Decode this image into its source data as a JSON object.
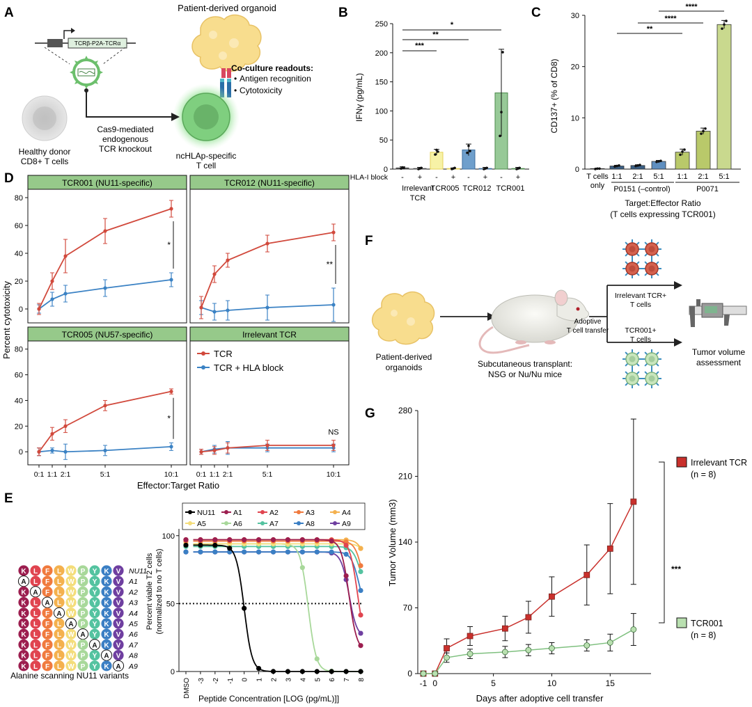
{
  "panel_labels": {
    "a": "A",
    "b": "B",
    "c": "C",
    "d": "D",
    "e": "E",
    "f": "F",
    "g": "G"
  },
  "panelA": {
    "title": "Patient-derived organoid",
    "vector_label": "TCRβ-P2A-TCRα",
    "readouts_title": "Co-culture readouts:",
    "readout1": "Antigen recognition",
    "readout2": "Cytotoxicity",
    "knockout_line1": "Cas9-mediated",
    "knockout_line2": "endogenous",
    "knockout_line3": "TCR knockout",
    "donor_line1": "Healthy donor",
    "donor_line2": "CD8+ T cells",
    "tcell_line1": "ncHLAp-specific",
    "tcell_line2": "T cell",
    "colors": {
      "organoid": "#f7dc86",
      "tcell_glow": "#6fd36f",
      "tcell": "#7fb47f",
      "donor": "#d7d7d7",
      "virus": "#8fcf8f"
    }
  },
  "panelF": {
    "organoids_line1": "Patient-derived",
    "organoids_line2": "organoids",
    "transplant_line1": "Subcutaneous transplant:",
    "transplant_line2": "NSG or Nu/Nu mice",
    "transfer_line1": "Adoptive",
    "transfer_line2": "T cell transfer",
    "irrelevant_line1": "Irrelevant TCR+",
    "irrelevant_line2": "T cells",
    "tcr001_line1": "TCR001+",
    "tcr001_line2": "T cells",
    "assess_line1": "Tumor volume",
    "assess_line2": "assessment",
    "icon_names": [
      "organoid-icon",
      "mouse-icon",
      "caliper-icon"
    ]
  },
  "chart_data": [
    {
      "id": "B",
      "type": "bar",
      "ylabel": "IFNγ (pg/mL)",
      "ylim": [
        0,
        250
      ],
      "yticks": [
        "0",
        "50",
        "100",
        "150",
        "200",
        "250"
      ],
      "hla_label": "HLA-I block",
      "hla_signs": [
        "-",
        "+",
        "-",
        "+",
        "-",
        "+",
        "-",
        "+"
      ],
      "group_labels": [
        "Irrelevant",
        "TCR005",
        "TCR012",
        "TCR001"
      ],
      "group_label_extra": "TCR",
      "bars": [
        {
          "value": 2,
          "err": 2,
          "color": "#4d4d4d",
          "fill": "#4d4d4d"
        },
        {
          "value": 1,
          "err": 2,
          "color": "#4d4d4d",
          "fill": "#4d4d4d"
        },
        {
          "value": 29,
          "err": 5,
          "color": "#e6d25a",
          "fill": "#f7f2a6"
        },
        {
          "value": 1,
          "err": 1,
          "color": "#e6d25a",
          "fill": "#f7f2a6"
        },
        {
          "value": 33,
          "err": 10,
          "color": "#3c6e9e",
          "fill": "#6f9fcc"
        },
        {
          "value": 1,
          "err": 2,
          "color": "#3c6e9e",
          "fill": "#6f9fcc"
        },
        {
          "value": 131,
          "err": 75,
          "color": "#4c8a4c",
          "fill": "#97c997"
        },
        {
          "value": 1,
          "err": 2,
          "color": "#4c8a4c",
          "fill": "#97c997"
        }
      ],
      "dots": [
        [
          1,
          3,
          2
        ],
        [
          0,
          1,
          2
        ],
        [
          25,
          33,
          30
        ],
        [
          0,
          1,
          2
        ],
        [
          28,
          40,
          31
        ],
        [
          0,
          1,
          2
        ],
        [
          57,
          98,
          201
        ],
        [
          0,
          1,
          2
        ]
      ],
      "significance": [
        {
          "from": 0,
          "to": 2,
          "label": "***"
        },
        {
          "from": 0,
          "to": 4,
          "label": "**"
        },
        {
          "from": 0,
          "to": 6,
          "label": "*"
        }
      ]
    },
    {
      "id": "C",
      "type": "bar",
      "ylabel": "CD137+ (% of CD8)",
      "ylim": [
        0,
        30
      ],
      "yticks": [
        "0",
        "10",
        "20",
        "30"
      ],
      "categories": [
        "T cells only",
        "1:1",
        "2:1",
        "5:1",
        "1:1",
        "2:1",
        "5:1"
      ],
      "first_label_line1": "T cells",
      "first_label_line2": "only",
      "group1_label": "P0151 (–control)",
      "group2_label": "P0071",
      "xlabel_line1": "Target:Effector Ratio",
      "xlabel_line2": "(T cells expressing TCR001)",
      "bars": [
        {
          "value": 0.1,
          "err": 0.1,
          "fill": "#3a5f85"
        },
        {
          "value": 0.6,
          "err": 0.15,
          "fill": "#3a5f85"
        },
        {
          "value": 0.7,
          "err": 0.15,
          "fill": "#3a5f85"
        },
        {
          "value": 1.5,
          "err": 0.2,
          "fill": "#5f8fc0"
        },
        {
          "value": 3.3,
          "err": 0.6,
          "fill": "#b9c96a"
        },
        {
          "value": 7.4,
          "err": 0.6,
          "fill": "#b9c96a"
        },
        {
          "value": 28.2,
          "err": 0.8,
          "fill": "#c9d98e"
        }
      ],
      "dots": [
        [
          0,
          0.1,
          0.1
        ],
        [
          0.5,
          0.6,
          0.7
        ],
        [
          0.6,
          0.7,
          0.8
        ],
        [
          1.4,
          1.5,
          1.6
        ],
        [
          2.8,
          3.4,
          3.8
        ],
        [
          6.9,
          7.4,
          7.9
        ],
        [
          27.4,
          28.2,
          28.9
        ]
      ],
      "significance": [
        {
          "from": 1,
          "to": 4,
          "label": "**"
        },
        {
          "from": 2,
          "to": 5,
          "label": "****"
        },
        {
          "from": 3,
          "to": 6,
          "label": "****"
        }
      ]
    },
    {
      "id": "D",
      "type": "line",
      "ylabel": "Percent cytotoxicity",
      "xlabel": "Effector:Target Ratio",
      "x_ticks": [
        "0:1",
        "1:1",
        "2:1",
        "5:1",
        "10:1"
      ],
      "x_positions": [
        0,
        1,
        2,
        5,
        10
      ],
      "ylim": [
        -8,
        82
      ],
      "yticks": [
        "0",
        "20",
        "40",
        "60",
        "80"
      ],
      "legend": [
        "TCR",
        "TCR + HLA block"
      ],
      "colors": {
        "tcr": "#d1493c",
        "hla": "#3b82c4",
        "header": "#96c98a"
      },
      "panels": [
        {
          "title": "TCR001 (NU11-specific)",
          "tcr": [
            0,
            20,
            38,
            56,
            72
          ],
          "tcr_err": [
            4,
            6,
            12,
            9,
            6
          ],
          "hla": [
            0,
            7,
            11,
            15,
            21
          ],
          "hla_err": [
            3,
            5,
            6,
            6,
            5
          ],
          "sig": "*"
        },
        {
          "title": "TCR012 (NU11-specific)",
          "tcr": [
            1,
            25,
            35,
            47,
            55
          ],
          "tcr_err": [
            8,
            6,
            5,
            6,
            6
          ],
          "hla": [
            1,
            -2,
            -1,
            1,
            3
          ],
          "hla_err": [
            5,
            6,
            7,
            9,
            12
          ],
          "sig": "**"
        },
        {
          "title": "TCR005 (NU57-specific)",
          "tcr": [
            0,
            14,
            20,
            36,
            47
          ],
          "tcr_err": [
            3,
            5,
            5,
            4,
            2
          ],
          "hla": [
            0,
            1,
            0,
            1,
            4
          ],
          "hla_err": [
            3,
            2,
            6,
            4,
            3
          ],
          "sig": "*"
        },
        {
          "title": "Irrelevant TCR",
          "tcr": [
            0,
            1,
            3,
            5,
            5
          ],
          "tcr_err": [
            2,
            3,
            4,
            4,
            4
          ],
          "hla": [
            0,
            2,
            3,
            3,
            3
          ],
          "hla_err": [
            2,
            3,
            5,
            3,
            3
          ],
          "sig": "NS"
        }
      ]
    },
    {
      "id": "E",
      "type": "line",
      "ylabel_line1": "Percent viable T2 cells",
      "ylabel_line2": "(normalized to no T cells)",
      "xlabel": "Peptide Concentration [LOG (pg/mL)]]",
      "x_ticks": [
        "DMSO",
        "-3",
        "-2",
        "-1",
        "0",
        "1",
        "2",
        "3",
        "4",
        "5",
        "6",
        "7",
        "8"
      ],
      "ylim": [
        0,
        105
      ],
      "yticks": [
        "0",
        "50",
        "100"
      ],
      "dotted_line": 50,
      "series": [
        {
          "name": "NU11",
          "color": "#000000",
          "ic50": 0,
          "top": 93,
          "bottom": 0
        },
        {
          "name": "A1",
          "color": "#9c1e4f",
          "ic50": 7.2,
          "top": 97,
          "bottom": 15
        },
        {
          "name": "A2",
          "color": "#e0444f",
          "ic50": 7.8,
          "top": 97,
          "bottom": 15
        },
        {
          "name": "A3",
          "color": "#f07a3e",
          "ic50": 8.2,
          "top": 96,
          "bottom": 40
        },
        {
          "name": "A4",
          "color": "#f4b14e",
          "ic50": 8.5,
          "top": 97,
          "bottom": 50
        },
        {
          "name": "A5",
          "color": "#f4dd7a",
          "ic50": 8.6,
          "top": 94,
          "bottom": 60
        },
        {
          "name": "A6",
          "color": "#a8d89a",
          "ic50": 4.4,
          "top": 94,
          "bottom": 0
        },
        {
          "name": "A7",
          "color": "#54c3a0",
          "ic50": 8.0,
          "top": 92,
          "bottom": 55
        },
        {
          "name": "A8",
          "color": "#3b7fc4",
          "ic50": 7.9,
          "top": 88,
          "bottom": 40
        },
        {
          "name": "A9",
          "color": "#6f3fa0",
          "ic50": 7.2,
          "top": 88,
          "bottom": 25
        }
      ],
      "variants": [
        {
          "name": "NU11",
          "seq": [
            "K",
            "L",
            "F",
            "L",
            "W",
            "P",
            "Y",
            "K",
            "V"
          ],
          "ala": -1
        },
        {
          "name": "A1",
          "seq": [
            "A",
            "L",
            "F",
            "L",
            "W",
            "P",
            "Y",
            "K",
            "V"
          ],
          "ala": 0
        },
        {
          "name": "A2",
          "seq": [
            "K",
            "A",
            "F",
            "L",
            "W",
            "P",
            "Y",
            "K",
            "V"
          ],
          "ala": 1
        },
        {
          "name": "A3",
          "seq": [
            "K",
            "L",
            "A",
            "L",
            "W",
            "P",
            "Y",
            "K",
            "V"
          ],
          "ala": 2
        },
        {
          "name": "A4",
          "seq": [
            "K",
            "L",
            "F",
            "A",
            "W",
            "P",
            "Y",
            "K",
            "V"
          ],
          "ala": 3
        },
        {
          "name": "A5",
          "seq": [
            "K",
            "L",
            "F",
            "L",
            "A",
            "P",
            "Y",
            "K",
            "V"
          ],
          "ala": 4
        },
        {
          "name": "A6",
          "seq": [
            "K",
            "L",
            "F",
            "L",
            "W",
            "A",
            "Y",
            "K",
            "V"
          ],
          "ala": 5
        },
        {
          "name": "A7",
          "seq": [
            "K",
            "L",
            "F",
            "L",
            "W",
            "P",
            "A",
            "K",
            "V"
          ],
          "ala": 6
        },
        {
          "name": "A8",
          "seq": [
            "K",
            "L",
            "F",
            "L",
            "W",
            "P",
            "Y",
            "A",
            "V"
          ],
          "ala": 7
        },
        {
          "name": "A9",
          "seq": [
            "K",
            "L",
            "F",
            "L",
            "W",
            "P",
            "Y",
            "K",
            "A"
          ],
          "ala": 8
        }
      ],
      "residue_colors": [
        "#9c1e4f",
        "#e0444f",
        "#f07a3e",
        "#f4b14e",
        "#f4dd7a",
        "#a8d89a",
        "#54c3a0",
        "#3b7fc4",
        "#6f3fa0"
      ],
      "caption": "Alanine scanning NU11 variants"
    },
    {
      "id": "G",
      "type": "line",
      "ylabel": "Tumor Volume (mm3)",
      "xlabel": "Days after adoptive cell transfer",
      "xlim": [
        -1,
        18.5
      ],
      "x_ticks": [
        "-1",
        "0",
        "5",
        "10",
        "15"
      ],
      "x_tick_values": [
        -1,
        0,
        5,
        10,
        15
      ],
      "ylim": [
        0,
        280
      ],
      "yticks": [
        "0",
        "70",
        "140",
        "210",
        "280"
      ],
      "series": [
        {
          "name": "Irrelevant TCR",
          "n_label": "(n = 8)",
          "color": "#c9302c",
          "fill": "#c9302c",
          "marker": "square",
          "x": [
            -1,
            0,
            1,
            3,
            6,
            8,
            10,
            13,
            15,
            17
          ],
          "y": [
            0,
            0,
            27,
            40,
            48,
            60,
            82,
            105,
            133,
            183
          ],
          "err": [
            0,
            0,
            10,
            10,
            13,
            17,
            21,
            32,
            48,
            88
          ]
        },
        {
          "name": "TCR001",
          "n_label": "(n = 8)",
          "color": "#7fc07f",
          "fill": "#b9e0b0",
          "marker": "circle",
          "x": [
            -1,
            0,
            1,
            3,
            6,
            8,
            10,
            13,
            15,
            17
          ],
          "y": [
            0,
            0,
            17,
            21,
            23,
            25,
            27,
            30,
            33,
            47
          ],
          "err": [
            0,
            0,
            5,
            5,
            6,
            6,
            6,
            6,
            9,
            17
          ]
        }
      ],
      "significance": "***"
    }
  ]
}
